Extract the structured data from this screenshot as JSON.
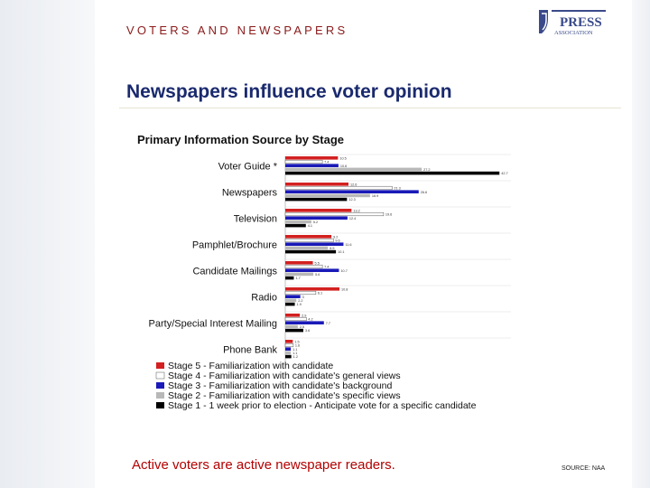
{
  "header": {
    "kicker": "VOTERS AND NEWSPAPERS",
    "title": "Newspapers influence voter opinion"
  },
  "logo": {
    "text_top": "PRESS",
    "text_bottom": "ASSOCIATION"
  },
  "footer": {
    "caption": "Active voters are active newspaper readers.",
    "source": "SOURCE: NAA"
  },
  "colors": {
    "kicker": "#8a1a1a",
    "title": "#1a2a6e",
    "caption": "#b30000"
  },
  "chart_data": {
    "type": "bar",
    "orientation": "horizontal",
    "title": "Primary Information Source by Stage",
    "categories": [
      "Voter Guide *",
      "Newspapers",
      "Television",
      "Pamphlet/Brochure",
      "Candidate Mailings",
      "Radio",
      "Party/Special Interest Mailing",
      "Phone Bank"
    ],
    "series": [
      {
        "name": "Stage 5 - Familiarization with candidate",
        "color": "#d32020",
        "values": [
          10.5,
          12.6,
          13.2,
          9.2,
          5.5,
          10.8,
          2.9,
          1.5
        ]
      },
      {
        "name": "Stage 4 - Familiarization with candidate's general views",
        "color": "#ffffff",
        "values": [
          7.4,
          21.3,
          19.6,
          9.6,
          7.4,
          6.1,
          4.2,
          1.6
        ]
      },
      {
        "name": "Stage 3 - Familiarization with candidate's background",
        "color": "#1a1ab8",
        "values": [
          10.6,
          26.6,
          12.4,
          11.6,
          10.7,
          3.0,
          7.7,
          1.1
        ]
      },
      {
        "name": "Stage 2 - Familiarization with candidate's specific views",
        "color": "#b8b8b8",
        "values": [
          27.2,
          16.9,
          5.2,
          8.5,
          5.6,
          2.2,
          2.5,
          1.1
        ]
      },
      {
        "name": "Stage 1 - 1 week prior to election - Anticipate vote for a specific candidate",
        "color": "#000000",
        "values": [
          42.7,
          12.3,
          4.1,
          10.1,
          1.7,
          1.9,
          3.6,
          1.2
        ]
      }
    ],
    "xlim": [
      0,
      45
    ],
    "legend_position": "bottom",
    "grid": false
  }
}
